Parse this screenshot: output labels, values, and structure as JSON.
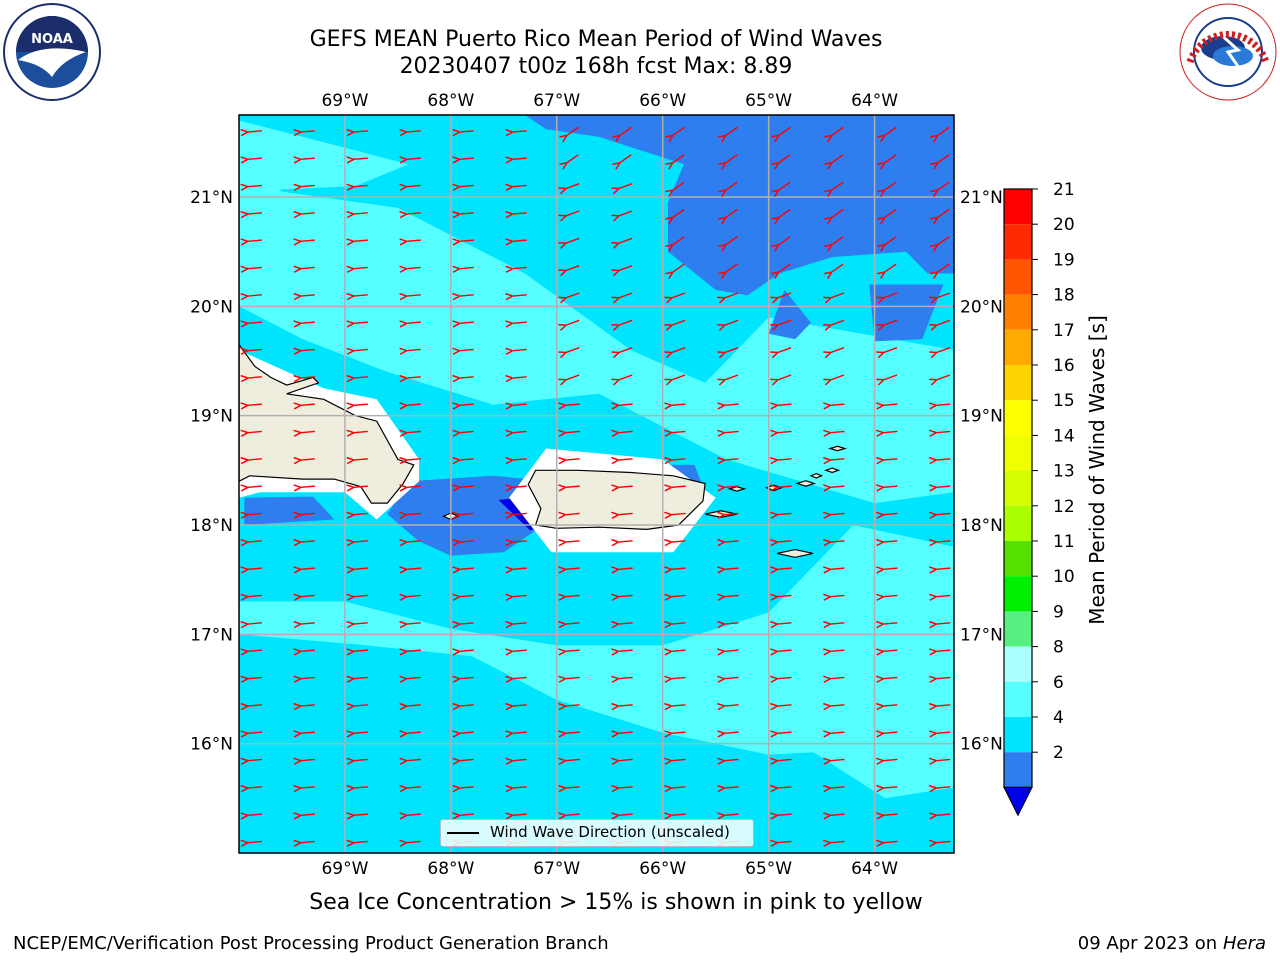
{
  "title": {
    "line1": "GEFS MEAN Puerto Rico Mean Period of Wind Waves",
    "line2": "20230407 t00z 168h fcst   Max: 8.89"
  },
  "logos": {
    "left": "NOAA",
    "right": "NATIONAL WEATHER SERVICE"
  },
  "map": {
    "lon_labels": [
      "69°W",
      "68°W",
      "67°W",
      "66°W",
      "65°W",
      "64°W"
    ],
    "lat_labels": [
      "21°N",
      "20°N",
      "19°N",
      "18°N",
      "17°N",
      "16°N"
    ],
    "lon_range": [
      -70.0,
      -63.25
    ],
    "lat_range": [
      15.0,
      21.75
    ],
    "colors": {
      "c2_4": "#2e7ef0",
      "c4_6": "#00e5ff",
      "c6_8": "#55ffff",
      "below2": "#0000e6",
      "land": "#efedde",
      "arrow": "#ff0000",
      "grid": "#b0b0b0"
    }
  },
  "legend": {
    "label": "Wind Wave Direction (unscaled)"
  },
  "colorbar": {
    "label": "Mean Period of Wind Waves [s]",
    "ticks": [
      "21",
      "20",
      "19",
      "18",
      "17",
      "16",
      "15",
      "14",
      "13",
      "12",
      "11",
      "10",
      "9",
      "8",
      "6",
      "4",
      "2"
    ],
    "colors": [
      "#ff0000",
      "#ff2a00",
      "#ff5500",
      "#ff8000",
      "#ffaa00",
      "#ffd400",
      "#ffff00",
      "#f0ff00",
      "#d4ff00",
      "#aaff00",
      "#55e000",
      "#00ee00",
      "#55f080",
      "#aaffff",
      "#55ffff",
      "#00e5ff",
      "#2e7ef0"
    ],
    "extend_color": "#0000e6"
  },
  "notes": {
    "sea_ice": "Sea Ice Concentration > 15% is shown in pink to yellow",
    "footer_left": "NCEP/EMC/Verification Post Processing Product Generation Branch",
    "footer_date": "09 Apr 2023 on ",
    "footer_host": "Hera"
  }
}
